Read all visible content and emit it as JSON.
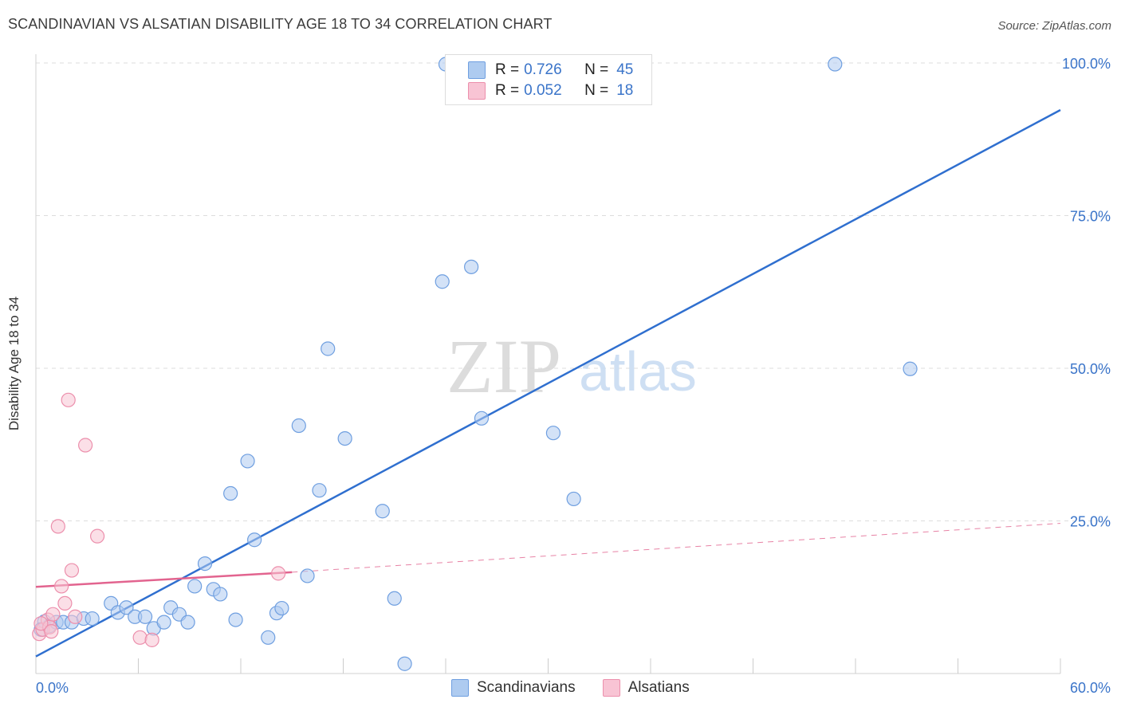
{
  "header": {
    "title": "SCANDINAVIAN VS ALSATIAN DISABILITY AGE 18 TO 34 CORRELATION CHART",
    "source": "Source: ZipAtlas.com"
  },
  "legend": {
    "rows": [
      {
        "r_label": "R =",
        "r_value": "0.726",
        "n_label": "N =",
        "n_value": "45"
      },
      {
        "r_label": "R =",
        "r_value": "0.052",
        "n_label": "N =",
        "n_value": "18"
      }
    ]
  },
  "bottom_legend": {
    "items": [
      "Scandinavians",
      "Alsatians"
    ]
  },
  "watermark": {
    "zip": "ZIP",
    "atlas": "atlas"
  },
  "colors": {
    "blue_fill": "#aecbf0",
    "blue_stroke": "#6f9fe0",
    "blue_line": "#2f6fcf",
    "pink_fill": "#f8c4d4",
    "pink_stroke": "#ec8fac",
    "pink_line": "#e2648f",
    "tick_text": "#3a74c9",
    "grid": "#dddddd"
  },
  "chart_data": {
    "type": "scatter",
    "title": "SCANDINAVIAN VS ALSATIAN DISABILITY AGE 18 TO 34 CORRELATION CHART",
    "ylabel": "Disability Age 18 to 34",
    "xlabel": "",
    "xlim": [
      0,
      60
    ],
    "ylim": [
      0,
      100
    ],
    "x_tick_labels": [
      {
        "value": 0,
        "label": "0.0%"
      },
      {
        "value": 60,
        "label": "60.0%"
      }
    ],
    "y_tick_labels": [
      {
        "value": 25,
        "label": "25.0%"
      },
      {
        "value": 50,
        "label": "50.0%"
      },
      {
        "value": 75,
        "label": "75.0%"
      },
      {
        "value": 100,
        "label": "100.0%"
      }
    ],
    "grid": "horizontal dashed",
    "legend_placement": "top-center",
    "series": [
      {
        "name": "Scandinavians",
        "color": "#6f9fe0",
        "points": [
          [
            0.5,
            8.5
          ],
          [
            0.8,
            7.8
          ],
          [
            1.2,
            8.4
          ],
          [
            1.6,
            8.4
          ],
          [
            2.1,
            8.4
          ],
          [
            2.8,
            9.0
          ],
          [
            3.3,
            9.0
          ],
          [
            4.4,
            11.5
          ],
          [
            4.8,
            10.0
          ],
          [
            5.3,
            10.8
          ],
          [
            5.8,
            9.3
          ],
          [
            6.4,
            9.3
          ],
          [
            6.9,
            7.4
          ],
          [
            7.5,
            8.4
          ],
          [
            7.9,
            10.8
          ],
          [
            8.4,
            9.7
          ],
          [
            8.9,
            8.4
          ],
          [
            9.3,
            14.3
          ],
          [
            9.9,
            18.0
          ],
          [
            10.4,
            13.8
          ],
          [
            10.8,
            13.0
          ],
          [
            11.4,
            29.5
          ],
          [
            11.7,
            8.8
          ],
          [
            12.4,
            34.8
          ],
          [
            12.8,
            21.9
          ],
          [
            13.6,
            5.9
          ],
          [
            14.1,
            9.9
          ],
          [
            14.4,
            10.7
          ],
          [
            15.4,
            40.6
          ],
          [
            15.9,
            16.0
          ],
          [
            16.6,
            30.0
          ],
          [
            17.1,
            53.2
          ],
          [
            18.1,
            38.5
          ],
          [
            20.3,
            26.6
          ],
          [
            21.0,
            12.3
          ],
          [
            21.6,
            1.6
          ],
          [
            23.8,
            64.2
          ],
          [
            24.0,
            99.8
          ],
          [
            25.5,
            66.6
          ],
          [
            26.1,
            41.8
          ],
          [
            30.3,
            39.4
          ],
          [
            31.5,
            28.6
          ],
          [
            46.8,
            99.8
          ],
          [
            51.2,
            49.9
          ],
          [
            0.3,
            7.2
          ]
        ]
      },
      {
        "name": "Alsatians",
        "color": "#ec8fac",
        "points": [
          [
            0.2,
            6.5
          ],
          [
            0.4,
            7.2
          ],
          [
            0.7,
            8.8
          ],
          [
            0.8,
            7.6
          ],
          [
            1.0,
            9.7
          ],
          [
            1.3,
            24.1
          ],
          [
            1.5,
            14.3
          ],
          [
            1.7,
            11.5
          ],
          [
            1.9,
            44.8
          ],
          [
            2.1,
            16.9
          ],
          [
            2.3,
            9.3
          ],
          [
            2.9,
            37.4
          ],
          [
            3.6,
            22.5
          ],
          [
            6.1,
            5.9
          ],
          [
            6.8,
            5.5
          ],
          [
            14.2,
            16.4
          ],
          [
            0.3,
            8.2
          ],
          [
            0.9,
            6.9
          ]
        ]
      }
    ],
    "trendlines": [
      {
        "series": "Scandinavians",
        "from": [
          0,
          2.8
        ],
        "to": [
          60,
          92.3
        ],
        "style": "solid"
      },
      {
        "series": "Alsatians",
        "from": [
          0,
          14.2
        ],
        "to": [
          15,
          16.6
        ],
        "style": "solid"
      },
      {
        "series": "Alsatians",
        "from": [
          15,
          16.6
        ],
        "to": [
          60,
          24.6
        ],
        "style": "dashed"
      }
    ]
  }
}
